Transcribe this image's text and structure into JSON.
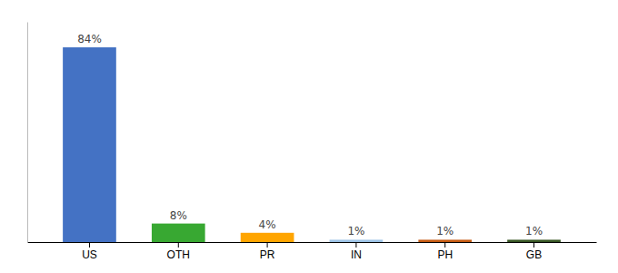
{
  "chart_data": {
    "type": "bar",
    "categories": [
      "US",
      "OTH",
      "PR",
      "IN",
      "PH",
      "GB"
    ],
    "values": [
      84,
      8,
      4,
      1,
      1,
      1
    ],
    "value_labels": [
      "84%",
      "8%",
      "4%",
      "1%",
      "1%",
      "1%"
    ],
    "colors": [
      "#4472C4",
      "#38A832",
      "#FFA500",
      "#9DC3E6",
      "#C55A11",
      "#375623"
    ],
    "ylim": [
      0,
      95
    ],
    "data_labels": true,
    "tick_labels": "x"
  }
}
